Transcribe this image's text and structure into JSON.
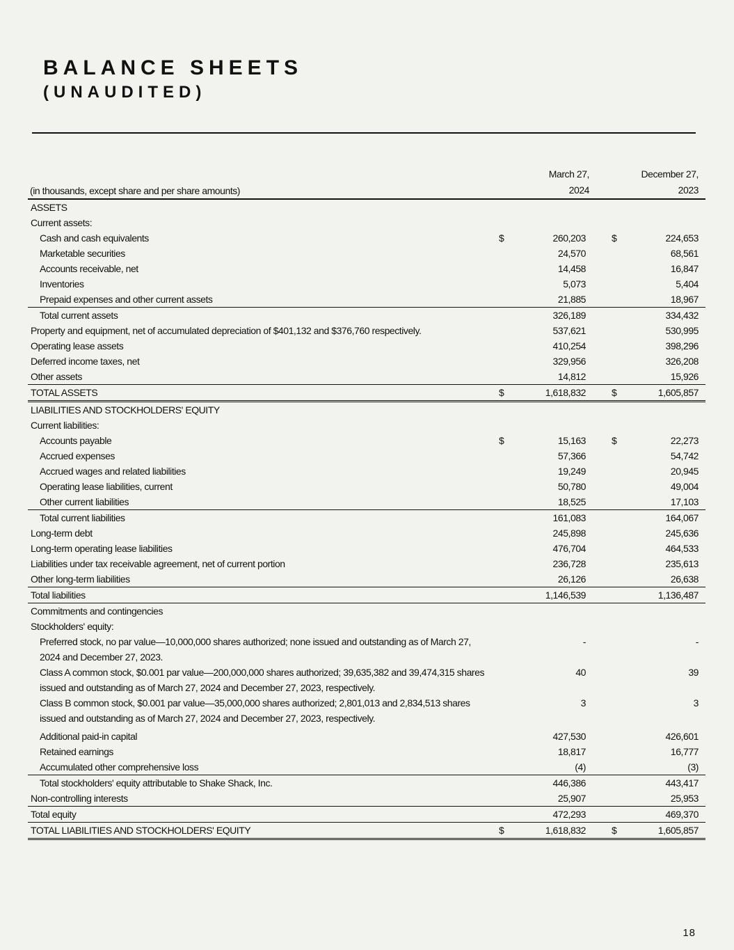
{
  "title": "BALANCE SHEETS",
  "subtitle": "(UNAUDITED)",
  "table": {
    "caption": "(in thousands, except share and per share amounts)",
    "col1": [
      "March 27,",
      "2024"
    ],
    "col2": [
      "December 27,",
      "2023"
    ],
    "rows": [
      {
        "label": "ASSETS",
        "level": 0
      },
      {
        "label": "Current assets:",
        "level": 0
      },
      {
        "label": "Cash and cash equivalents",
        "level": 1,
        "v1": "260,203",
        "v2": "224,653",
        "dollar": true
      },
      {
        "label": "Marketable securities",
        "level": 1,
        "v1": "24,570",
        "v2": "68,561"
      },
      {
        "label": "Accounts receivable, net",
        "level": 1,
        "v1": "14,458",
        "v2": "16,847"
      },
      {
        "label": "Inventories",
        "level": 1,
        "v1": "5,073",
        "v2": "5,404"
      },
      {
        "label": "Prepaid expenses and other current assets",
        "level": 1,
        "v1": "21,885",
        "v2": "18,967",
        "underline": "single"
      },
      {
        "label": "Total current assets",
        "level": 1,
        "v1": "326,189",
        "v2": "334,432"
      },
      {
        "label": "Property and equipment, net of accumulated depreciation of $401,132 and $376,760 respectively.",
        "level": 0,
        "v1": "537,621",
        "v2": "530,995"
      },
      {
        "label": "Operating lease assets",
        "level": 0,
        "v1": "410,254",
        "v2": "398,296"
      },
      {
        "label": "Deferred income taxes, net",
        "level": 0,
        "v1": "329,956",
        "v2": "326,208"
      },
      {
        "label": "Other assets",
        "level": 0,
        "v1": "14,812",
        "v2": "15,926",
        "underline": "single"
      },
      {
        "label": "TOTAL ASSETS",
        "level": 0,
        "v1": "1,618,832",
        "v2": "1,605,857",
        "dollar": true,
        "underline": "double"
      },
      {
        "label": "LIABILITIES AND STOCKHOLDERS' EQUITY",
        "level": 0
      },
      {
        "label": "Current liabilities:",
        "level": 0
      },
      {
        "label": "Accounts payable",
        "level": 1,
        "v1": "15,163",
        "v2": "22,273",
        "dollar": true
      },
      {
        "label": "Accrued expenses",
        "level": 1,
        "v1": "57,366",
        "v2": "54,742"
      },
      {
        "label": "Accrued wages and related liabilities",
        "level": 1,
        "v1": "19,249",
        "v2": "20,945"
      },
      {
        "label": "Operating lease liabilities, current",
        "level": 1,
        "v1": "50,780",
        "v2": "49,004"
      },
      {
        "label": "Other current liabilities",
        "level": 1,
        "v1": "18,525",
        "v2": "17,103",
        "underline": "single"
      },
      {
        "label": "Total current liabilities",
        "level": 1,
        "v1": "161,083",
        "v2": "164,067"
      },
      {
        "label": "Long-term debt",
        "level": 0,
        "v1": "245,898",
        "v2": "245,636"
      },
      {
        "label": "Long-term operating lease liabilities",
        "level": 0,
        "v1": "476,704",
        "v2": "464,533"
      },
      {
        "label": "Liabilities under tax receivable agreement, net of current portion",
        "level": 0,
        "v1": "236,728",
        "v2": "235,613"
      },
      {
        "label": "Other long-term liabilities",
        "level": 0,
        "v1": "26,126",
        "v2": "26,638",
        "underline": "single"
      },
      {
        "label": "Total liabilities",
        "level": 0,
        "v1": "1,146,539",
        "v2": "1,136,487",
        "underline": "single"
      },
      {
        "label": "Commitments and contingencies",
        "level": 0
      },
      {
        "label": "Stockholders' equity:",
        "level": 0
      },
      {
        "label": "Preferred stock, no par value—10,000,000 shares authorized; none issued and outstanding as of March 27, 2024 and December 27, 2023.",
        "level": 1,
        "v1": "-",
        "v2": "-",
        "wrap": true
      },
      {
        "label": "Class A common stock, $0.001 par value—200,000,000 shares authorized; 39,635,382 and 39,474,315 shares issued and outstanding as of March 27, 2024 and December 27, 2023, respectively.",
        "level": 1,
        "v1": "40",
        "v2": "39",
        "wrap": true
      },
      {
        "label": "Class B common stock, $0.001 par value—35,000,000 shares authorized; 2,801,013 and 2,834,513 shares issued and outstanding as of March 27, 2024 and December 27, 2023, respectively.",
        "level": 1,
        "v1": "3",
        "v2": "3",
        "wrap": true
      },
      {
        "label": "Additional paid-in capital",
        "level": 1,
        "v1": "427,530",
        "v2": "426,601",
        "gap": true
      },
      {
        "label": "Retained earnings",
        "level": 1,
        "v1": "18,817",
        "v2": "16,777"
      },
      {
        "label": "Accumulated other comprehensive loss",
        "level": 1,
        "v1": "(4)",
        "v2": "(3)",
        "underline": "single"
      },
      {
        "label": "Total stockholders' equity attributable to Shake Shack, Inc.",
        "level": 1,
        "v1": "446,386",
        "v2": "443,417"
      },
      {
        "label": "Non-controlling interests",
        "level": 0,
        "v1": "25,907",
        "v2": "25,953",
        "underline": "single"
      },
      {
        "label": "Total equity",
        "level": 0,
        "v1": "472,293",
        "v2": "469,370",
        "underline": "single"
      },
      {
        "label": "TOTAL LIABILITIES AND STOCKHOLDERS' EQUITY",
        "level": 0,
        "v1": "1,618,832",
        "v2": "1,605,857",
        "dollar": true,
        "underline": "double"
      }
    ],
    "currency_symbol": "$"
  },
  "page_number": "18"
}
